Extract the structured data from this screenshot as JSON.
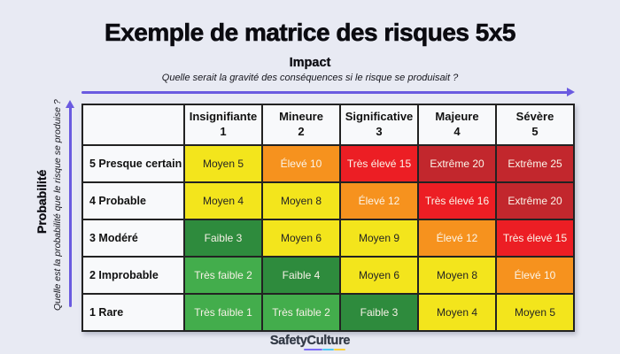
{
  "title": "Exemple de matrice des risques 5x5",
  "impact_axis": {
    "label": "Impact",
    "question": "Quelle serait la gravité des conséquences si le risque se produisait ?"
  },
  "probability_axis": {
    "label": "Probabilité",
    "question": "Quelle est la probabilité que le risque se produise ?"
  },
  "colors": {
    "background": "#E8EAF3",
    "axis_arrow": "#6A5AE0",
    "table_border": "#222222",
    "header_cell_bg": "#F8F9FB",
    "levels": {
      "very_low": {
        "bg": "#43AD4C",
        "text": "#F6F1E6"
      },
      "low": {
        "bg": "#2E8B3D",
        "text": "#F6F1E6"
      },
      "medium": {
        "bg": "#F3E51C",
        "text": "#242424"
      },
      "high": {
        "bg": "#F6921E",
        "text": "#FBF5EA"
      },
      "very_high": {
        "bg": "#EC1E24",
        "text": "#FBF5EA"
      },
      "extreme": {
        "bg": "#C2272D",
        "text": "#FBF5EA"
      }
    }
  },
  "matrix": {
    "column_headers": [
      {
        "name": "Insignifiante",
        "number": "1"
      },
      {
        "name": "Mineure",
        "number": "2"
      },
      {
        "name": "Significative",
        "number": "3"
      },
      {
        "name": "Majeure",
        "number": "4"
      },
      {
        "name": "Sévère",
        "number": "5"
      }
    ],
    "rows": [
      {
        "label": "5 Presque certain",
        "cells": [
          {
            "text": "Moyen 5",
            "level": "medium"
          },
          {
            "text": "Élevé 10",
            "level": "high"
          },
          {
            "text": "Très élevé 15",
            "level": "very_high"
          },
          {
            "text": "Extrême 20",
            "level": "extreme"
          },
          {
            "text": "Extrême 25",
            "level": "extreme"
          }
        ]
      },
      {
        "label": "4 Probable",
        "cells": [
          {
            "text": "Moyen 4",
            "level": "medium"
          },
          {
            "text": "Moyen 8",
            "level": "medium"
          },
          {
            "text": "Élevé 12",
            "level": "high"
          },
          {
            "text": "Très élevé 16",
            "level": "very_high"
          },
          {
            "text": "Extrême 20",
            "level": "extreme"
          }
        ]
      },
      {
        "label": "3 Modéré",
        "cells": [
          {
            "text": "Faible 3",
            "level": "low"
          },
          {
            "text": "Moyen 6",
            "level": "medium"
          },
          {
            "text": "Moyen 9",
            "level": "medium"
          },
          {
            "text": "Élevé 12",
            "level": "high"
          },
          {
            "text": "Très élevé 15",
            "level": "very_high"
          }
        ]
      },
      {
        "label": "2 Improbable",
        "cells": [
          {
            "text": "Très faible 2",
            "level": "very_low"
          },
          {
            "text": "Faible 4",
            "level": "low"
          },
          {
            "text": "Moyen 6",
            "level": "medium"
          },
          {
            "text": "Moyen 8",
            "level": "medium"
          },
          {
            "text": "Élevé 10",
            "level": "high"
          }
        ]
      },
      {
        "label": "1 Rare",
        "cells": [
          {
            "text": "Très faible 1",
            "level": "very_low"
          },
          {
            "text": "Très faible 2",
            "level": "very_low"
          },
          {
            "text": "Faible 3",
            "level": "low"
          },
          {
            "text": "Moyen 4",
            "level": "medium"
          },
          {
            "text": "Moyen 5",
            "level": "medium"
          }
        ]
      }
    ]
  },
  "footer": {
    "brand": "SafetyCulture",
    "underline_colors": [
      "#7C6CF6",
      "#4EC9F5",
      "#F9D13B"
    ]
  }
}
